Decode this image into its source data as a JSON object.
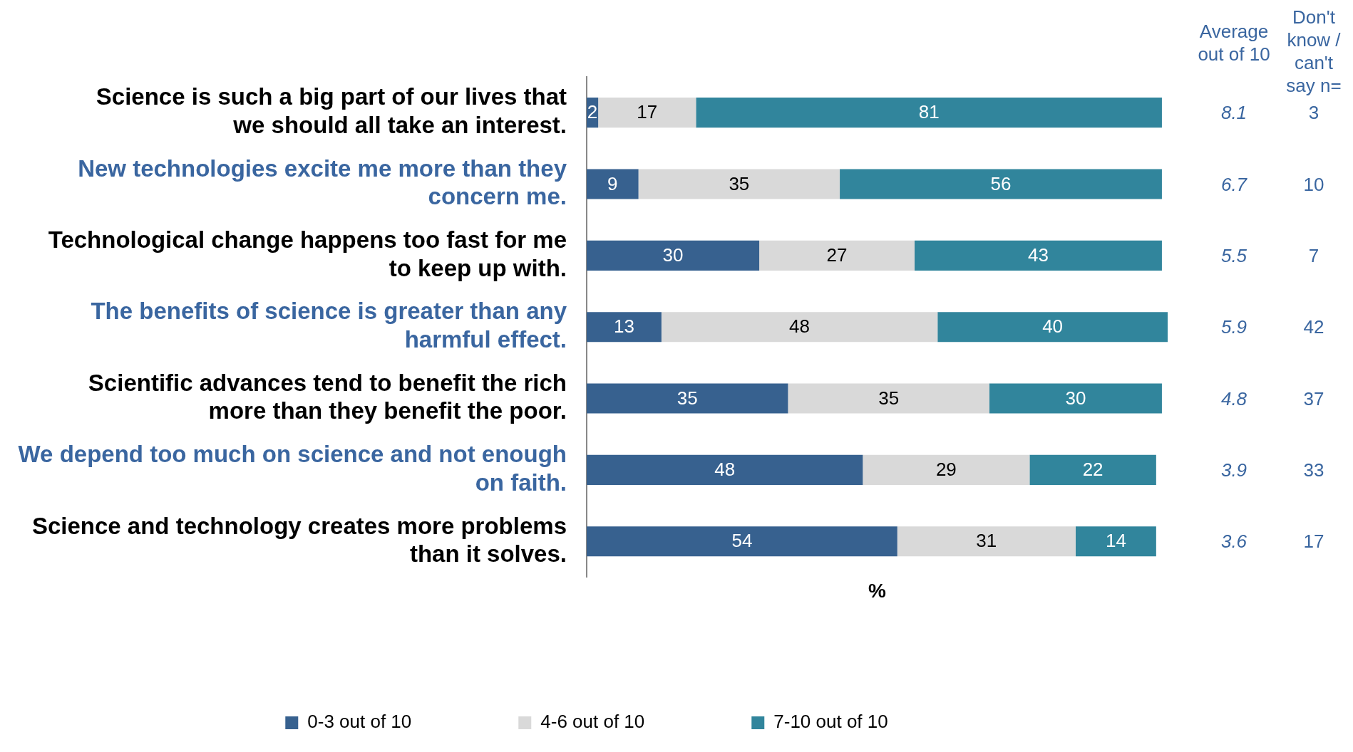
{
  "chart_data": {
    "type": "bar",
    "orientation": "horizontal",
    "stacked": true,
    "data_labels": true,
    "xlabel": "%",
    "xlim": [
      0,
      101
    ],
    "tick_labels": "y",
    "grid": false,
    "legend": "bottom",
    "categories": [
      "Science is such a big part of our lives that we should all take an interest.",
      "New technologies excite me more than they concern me.",
      "Technological change happens too fast for me to keep up with.",
      "The benefits of science is greater than any harmful effect.",
      "Scientific advances tend to benefit the rich more than they benefit the poor.",
      "We depend too much on science and not enough on faith.",
      "Science and technology creates more problems than it solves."
    ],
    "series": [
      {
        "name": "0-3 out of 10",
        "color": "#37618f",
        "values": [
          2,
          9,
          30,
          13,
          35,
          48,
          54
        ]
      },
      {
        "name": "4-6 out of 10",
        "color": "#d9d9d9",
        "values": [
          17,
          35,
          27,
          48,
          35,
          29,
          31
        ]
      },
      {
        "name": "7-10 out of 10",
        "color": "#31859c",
        "values": [
          81,
          56,
          43,
          40,
          30,
          22,
          14
        ]
      }
    ],
    "annotations": [
      "Average out of 10",
      "Don't know / can't say n=",
      "8.1",
      "3",
      "6.7",
      "10",
      "5.5",
      "7",
      "5.9",
      "42",
      "4.8",
      "37",
      "3.9",
      "33",
      "3.6",
      "17"
    ]
  }
}
